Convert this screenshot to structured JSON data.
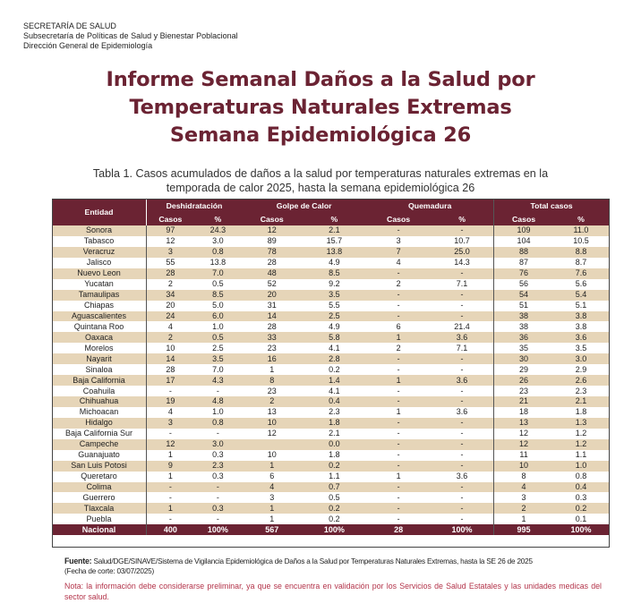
{
  "header": {
    "line1": "SECRETARÍA DE SALUD",
    "line2": "Subsecretaría de Políticas de Salud y Bienestar Poblacional",
    "line3": "Dirección General de Epidemiología"
  },
  "title": {
    "line1": "Informe Semanal  Daños a la Salud por",
    "line2": "Temperaturas Naturales Extremas",
    "line3": "Semana Epidemiológica 26"
  },
  "caption": {
    "line1": "Tabla 1. Casos acumulados de daños a la salud por temperaturas naturales extremas en la",
    "line2": "temporada de calor 2025, hasta la semana epidemiológica 26"
  },
  "table": {
    "entidad_header": "Entidad",
    "groups": [
      "Deshidratación",
      "Golpe de Calor",
      "Quemadura",
      "Total casos"
    ],
    "sub": {
      "casos": "Casos",
      "pct": "%"
    },
    "rows": [
      [
        "Sonora",
        "97",
        "24.3",
        "12",
        "2.1",
        "-",
        "-",
        "109",
        "11.0"
      ],
      [
        "Tabasco",
        "12",
        "3.0",
        "89",
        "15.7",
        "3",
        "10.7",
        "104",
        "10.5"
      ],
      [
        "Veracruz",
        "3",
        "0.8",
        "78",
        "13.8",
        "7",
        "25.0",
        "88",
        "8.8"
      ],
      [
        "Jalisco",
        "55",
        "13.8",
        "28",
        "4.9",
        "4",
        "14.3",
        "87",
        "8.7"
      ],
      [
        "Nuevo Leon",
        "28",
        "7.0",
        "48",
        "8.5",
        "-",
        "-",
        "76",
        "7.6"
      ],
      [
        "Yucatan",
        "2",
        "0.5",
        "52",
        "9.2",
        "2",
        "7.1",
        "56",
        "5.6"
      ],
      [
        "Tamaulipas",
        "34",
        "8.5",
        "20",
        "3.5",
        "-",
        "-",
        "54",
        "5.4"
      ],
      [
        "Chiapas",
        "20",
        "5.0",
        "31",
        "5.5",
        "-",
        "-",
        "51",
        "5.1"
      ],
      [
        "Aguascalientes",
        "24",
        "6.0",
        "14",
        "2.5",
        "-",
        "-",
        "38",
        "3.8"
      ],
      [
        "Quintana Roo",
        "4",
        "1.0",
        "28",
        "4.9",
        "6",
        "21.4",
        "38",
        "3.8"
      ],
      [
        "Oaxaca",
        "2",
        "0.5",
        "33",
        "5.8",
        "1",
        "3.6",
        "36",
        "3.6"
      ],
      [
        "Morelos",
        "10",
        "2.5",
        "23",
        "4.1",
        "2",
        "7.1",
        "35",
        "3.5"
      ],
      [
        "Nayarit",
        "14",
        "3.5",
        "16",
        "2.8",
        "-",
        "-",
        "30",
        "3.0"
      ],
      [
        "Sinaloa",
        "28",
        "7.0",
        "1",
        "0.2",
        "-",
        "-",
        "29",
        "2.9"
      ],
      [
        "Baja California",
        "17",
        "4.3",
        "8",
        "1.4",
        "1",
        "3.6",
        "26",
        "2.6"
      ],
      [
        "Coahuila",
        "-",
        "-",
        "23",
        "4.1",
        "-",
        "-",
        "23",
        "2.3"
      ],
      [
        "Chihuahua",
        "19",
        "4.8",
        "2",
        "0.4",
        "-",
        "-",
        "21",
        "2.1"
      ],
      [
        "Michoacan",
        "4",
        "1.0",
        "13",
        "2.3",
        "1",
        "3.6",
        "18",
        "1.8"
      ],
      [
        "Hidalgo",
        "3",
        "0.8",
        "10",
        "1.8",
        "-",
        "-",
        "13",
        "1.3"
      ],
      [
        "Baja California Sur",
        "-",
        "-",
        "12",
        "2.1",
        "-",
        "-",
        "12",
        "1.2"
      ],
      [
        "Campeche",
        "12",
        "3.0",
        "",
        "0.0",
        "-",
        "-",
        "12",
        "1.2"
      ],
      [
        "Guanajuato",
        "1",
        "0.3",
        "10",
        "1.8",
        "-",
        "-",
        "11",
        "1.1"
      ],
      [
        "San Luis Potosi",
        "9",
        "2.3",
        "1",
        "0.2",
        "-",
        "-",
        "10",
        "1.0"
      ],
      [
        "Queretaro",
        "1",
        "0.3",
        "6",
        "1.1",
        "1",
        "3.6",
        "8",
        "0.8"
      ],
      [
        "Colima",
        "-",
        "-",
        "4",
        "0.7",
        "-",
        "-",
        "4",
        "0.4"
      ],
      [
        "Guerrero",
        "-",
        "-",
        "3",
        "0.5",
        "-",
        "-",
        "3",
        "0.3"
      ],
      [
        "Tlaxcala",
        "1",
        "0.3",
        "1",
        "0.2",
        "-",
        "-",
        "2",
        "0.2"
      ],
      [
        "Puebla",
        "-",
        "-",
        "1",
        "0.2",
        "-",
        "-",
        "1",
        "0.1"
      ]
    ],
    "total": [
      "Nacional",
      "400",
      "100%",
      "567",
      "100%",
      "28",
      "100%",
      "995",
      "100%"
    ]
  },
  "fuente": {
    "label": "Fuente:",
    "text": "Salud/DGE/SINAVE/Sistema de Vigilancia Epidemiológica de Daños a la Salud por Temperaturas Naturales Extremas, hasta la SE 26 de 2025",
    "fecha": "(Fecha de corte: 03/07/2025)"
  },
  "nota": "Nota: la información debe considerarse preliminar, ya que se encuentra en validación por los Servicios de Salud Estatales y las unidades medicas del sector salud."
}
